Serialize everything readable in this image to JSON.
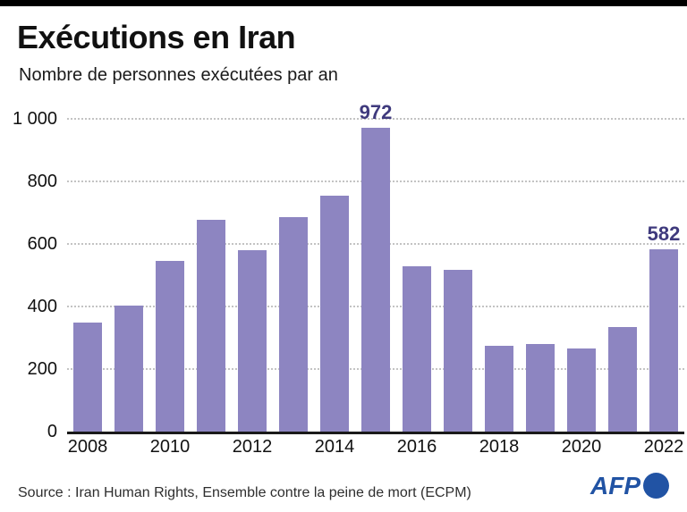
{
  "header": {
    "title": "Exécutions en Iran",
    "subtitle": "Nombre de personnes exécutées par an"
  },
  "chart_data": {
    "type": "bar",
    "title": "Exécutions en Iran",
    "subtitle": "Nombre de personnes exécutées par an",
    "categories": [
      "2008",
      "2009",
      "2010",
      "2011",
      "2012",
      "2013",
      "2014",
      "2015",
      "2016",
      "2017",
      "2018",
      "2019",
      "2020",
      "2021",
      "2022"
    ],
    "values": [
      350,
      402,
      546,
      676,
      580,
      687,
      753,
      972,
      530,
      517,
      273,
      280,
      267,
      333,
      582
    ],
    "annotations": [
      {
        "index": 7,
        "text": "972"
      },
      {
        "index": 14,
        "text": "582"
      }
    ],
    "xlabel": "",
    "ylabel": "",
    "ylim": [
      0,
      1000
    ],
    "yticks": [
      0,
      200,
      400,
      600,
      800,
      1000
    ],
    "ytick_labels": [
      "0",
      "200",
      "400",
      "600",
      "800",
      "1 000"
    ],
    "xtick_labels": [
      "2008",
      "2010",
      "2012",
      "2014",
      "2016",
      "2018",
      "2020",
      "2022"
    ],
    "grid": "horizontal-dotted",
    "legend": "none",
    "bar_color": "#8d85c1",
    "annotation_color": "#3f3a7d",
    "axis_color": "#1a1a1a",
    "gridline_color": "#c3c3c3"
  },
  "footer": {
    "source": "Source : Iran Human Rights, Ensemble contre la peine de mort (ECPM)",
    "agency": "AFP"
  },
  "colors": {
    "topbar": "#000000",
    "afp_blue": "#2153a4",
    "background": "#ffffff",
    "text": "#111111"
  }
}
